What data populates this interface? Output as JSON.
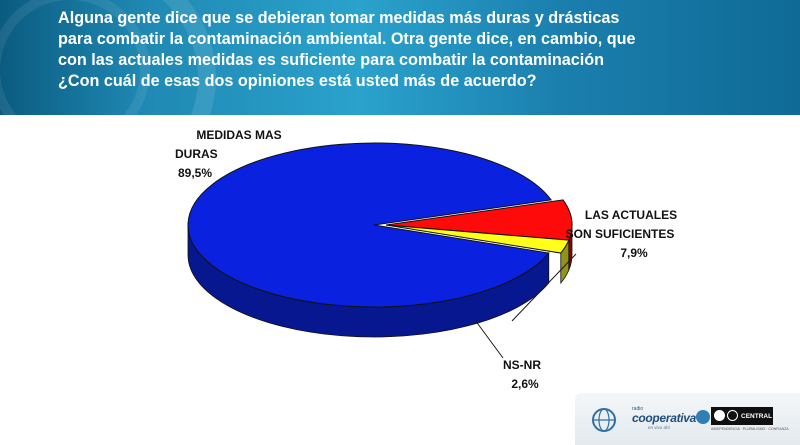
{
  "header": {
    "question_lines": [
      "Alguna gente dice que se debieran tomar medidas más duras y drásticas",
      "para combatir la contaminación ambiental. Otra gente dice, en cambio, que",
      "con las actuales medidas es suficiente para combatir la contaminación",
      "¿Con cuál de esas dos opiniones está usted más de acuerdo?"
    ]
  },
  "chart_data": {
    "type": "pie",
    "style": "3d",
    "slices": [
      {
        "label_lines": [
          "MEDIDAS MAS",
          "DURAS"
        ],
        "value": 89.5,
        "value_text": "89,5%",
        "color": "#0a22e0",
        "side_color": "#07178f"
      },
      {
        "label_lines": [
          "LAS ACTUALES",
          "SON SUFICIENTES"
        ],
        "value": 7.9,
        "value_text": "7,9%",
        "color": "#ff0a0a",
        "side_color": "#8d0404"
      },
      {
        "label_lines": [
          "NS-NR"
        ],
        "value": 2.6,
        "value_text": "2,6%",
        "color": "#ffff1a",
        "side_color": "#93931a"
      }
    ]
  },
  "footer": {
    "logos": [
      "globe-logo",
      "cooperativa-logo",
      "central-logo"
    ],
    "cooperativa_small": "radio",
    "cooperativa_word": "cooperativa",
    "cooperativa_tag": "en vivo ahí",
    "central_word": "CENTRAL",
    "central_tag": "INDEPENDENCIA · PLURALISMO · CONFIANZA"
  }
}
